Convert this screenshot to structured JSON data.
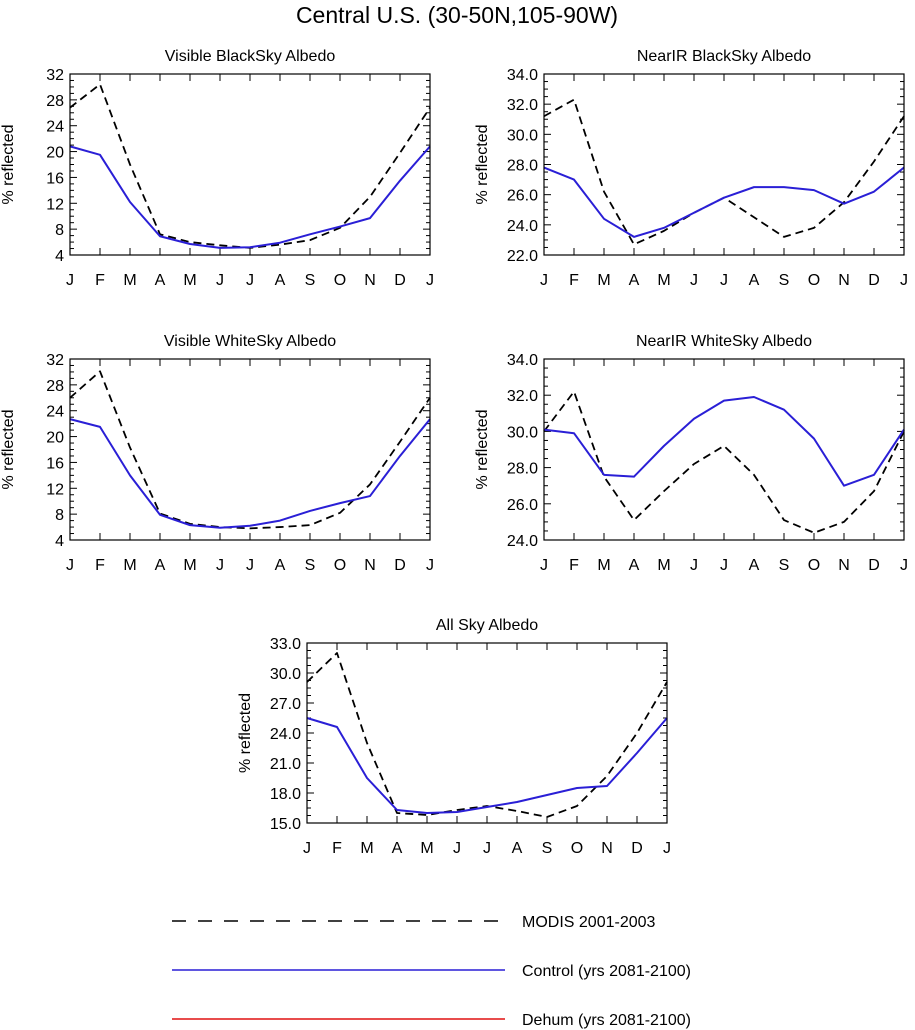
{
  "figure": {
    "title": "Central U.S. (30-50N,105-90W)"
  },
  "colors": {
    "modis": "#000000",
    "control": "#2a1fd6",
    "dehum": "#e01010",
    "axis": "#000000"
  },
  "chart_data": [
    {
      "type": "line",
      "title": "Visible BlackSky Albedo",
      "xlabel": "",
      "ylabel": "% reflected",
      "categories": [
        "J",
        "F",
        "M",
        "A",
        "M",
        "J",
        "J",
        "A",
        "S",
        "O",
        "N",
        "D",
        "J"
      ],
      "ylim": [
        4,
        32
      ],
      "yticks": [
        4,
        8,
        12,
        16,
        20,
        24,
        28,
        32
      ],
      "ytick_labels": [
        "4",
        "8",
        "12",
        "16",
        "20",
        "24",
        "28",
        "32"
      ],
      "series": [
        {
          "name": "MODIS 2001-2003",
          "style": "dashed",
          "values": [
            26.8,
            30.4,
            18.0,
            7.2,
            6.0,
            5.5,
            5.1,
            5.6,
            6.3,
            8.2,
            13.0,
            19.8,
            26.8
          ]
        },
        {
          "name": "Control (yrs 2081-2100)",
          "style": "solid",
          "values": [
            20.8,
            19.5,
            12.2,
            6.9,
            5.7,
            5.1,
            5.2,
            5.9,
            7.2,
            8.4,
            9.7,
            15.5,
            20.8
          ]
        }
      ]
    },
    {
      "type": "line",
      "title": "NearIR BlackSky Albedo",
      "xlabel": "",
      "ylabel": "% reflected",
      "categories": [
        "J",
        "F",
        "M",
        "A",
        "M",
        "J",
        "J",
        "A",
        "S",
        "O",
        "N",
        "D",
        "J"
      ],
      "ylim": [
        22.0,
        34.0
      ],
      "yticks": [
        22,
        24,
        26,
        28,
        30,
        32,
        34
      ],
      "ytick_labels": [
        "22.0",
        "24.0",
        "26.0",
        "28.0",
        "30.0",
        "32.0",
        "34.0"
      ],
      "series": [
        {
          "name": "MODIS 2001-2003",
          "style": "dashed",
          "values": [
            31.2,
            32.3,
            26.2,
            22.7,
            23.6,
            24.8,
            25.8,
            24.5,
            23.2,
            23.8,
            25.5,
            28.2,
            31.2
          ]
        },
        {
          "name": "Control (yrs 2081-2100)",
          "style": "solid",
          "values": [
            27.8,
            27.0,
            24.4,
            23.2,
            23.8,
            24.8,
            25.8,
            26.5,
            26.5,
            26.3,
            25.4,
            26.2,
            27.8
          ]
        }
      ]
    },
    {
      "type": "line",
      "title": "Visible WhiteSky Albedo",
      "xlabel": "",
      "ylabel": "% reflected",
      "categories": [
        "J",
        "F",
        "M",
        "A",
        "M",
        "J",
        "J",
        "A",
        "S",
        "O",
        "N",
        "D",
        "J"
      ],
      "ylim": [
        4,
        32
      ],
      "yticks": [
        4,
        8,
        12,
        16,
        20,
        24,
        28,
        32
      ],
      "ytick_labels": [
        "4",
        "8",
        "12",
        "16",
        "20",
        "24",
        "28",
        "32"
      ],
      "series": [
        {
          "name": "MODIS 2001-2003",
          "style": "dashed",
          "values": [
            26.0,
            30.1,
            18.3,
            8.1,
            6.5,
            6.0,
            5.8,
            6.0,
            6.3,
            8.2,
            12.6,
            19.2,
            26.0
          ]
        },
        {
          "name": "Control (yrs 2081-2100)",
          "style": "solid",
          "values": [
            22.7,
            21.5,
            14.0,
            7.9,
            6.3,
            5.9,
            6.2,
            7.0,
            8.5,
            9.7,
            10.8,
            17.0,
            22.7
          ]
        }
      ]
    },
    {
      "type": "line",
      "title": "NearIR WhiteSky Albedo",
      "xlabel": "",
      "ylabel": "% reflected",
      "categories": [
        "J",
        "F",
        "M",
        "A",
        "M",
        "J",
        "J",
        "A",
        "S",
        "O",
        "N",
        "D",
        "J"
      ],
      "ylim": [
        24.0,
        34.0
      ],
      "yticks": [
        24,
        26,
        28,
        30,
        32,
        34
      ],
      "ytick_labels": [
        "24.0",
        "26.0",
        "28.0",
        "30.0",
        "32.0",
        "34.0"
      ],
      "series": [
        {
          "name": "MODIS 2001-2003",
          "style": "dashed",
          "values": [
            30.0,
            32.2,
            27.5,
            25.1,
            26.7,
            28.2,
            29.2,
            27.6,
            25.1,
            24.4,
            25.0,
            26.7,
            30.0
          ]
        },
        {
          "name": "Control (yrs 2081-2100)",
          "style": "solid",
          "values": [
            30.1,
            29.9,
            27.6,
            27.5,
            29.2,
            30.7,
            31.7,
            31.9,
            31.2,
            29.6,
            27.0,
            27.6,
            30.1
          ]
        }
      ]
    },
    {
      "type": "line",
      "title": "All Sky Albedo",
      "xlabel": "",
      "ylabel": "% reflected",
      "categories": [
        "J",
        "F",
        "M",
        "A",
        "M",
        "J",
        "J",
        "A",
        "S",
        "O",
        "N",
        "D",
        "J"
      ],
      "ylim": [
        15.0,
        33.0
      ],
      "yticks": [
        15,
        18,
        21,
        24,
        27,
        30,
        33
      ],
      "ytick_labels": [
        "15.0",
        "18.0",
        "21.0",
        "24.0",
        "27.0",
        "30.0",
        "33.0"
      ],
      "series": [
        {
          "name": "MODIS 2001-2003",
          "style": "dashed",
          "values": [
            29.1,
            32.0,
            23.0,
            16.0,
            15.8,
            16.3,
            16.7,
            16.2,
            15.6,
            16.7,
            19.7,
            24.0,
            29.1
          ]
        },
        {
          "name": "Control (yrs 2081-2100)",
          "style": "solid",
          "values": [
            25.5,
            24.6,
            19.5,
            16.3,
            16.0,
            16.1,
            16.6,
            17.1,
            17.8,
            18.5,
            18.7,
            22.0,
            25.5
          ]
        }
      ]
    }
  ],
  "legend": {
    "entries": [
      {
        "label": "MODIS 2001-2003",
        "style": "dashed",
        "color_key": "modis"
      },
      {
        "label": "Control (yrs 2081-2100)",
        "style": "solid",
        "color_key": "control"
      },
      {
        "label": "Dehum (yrs 2081-2100)",
        "style": "solid",
        "color_key": "dehum"
      }
    ]
  }
}
